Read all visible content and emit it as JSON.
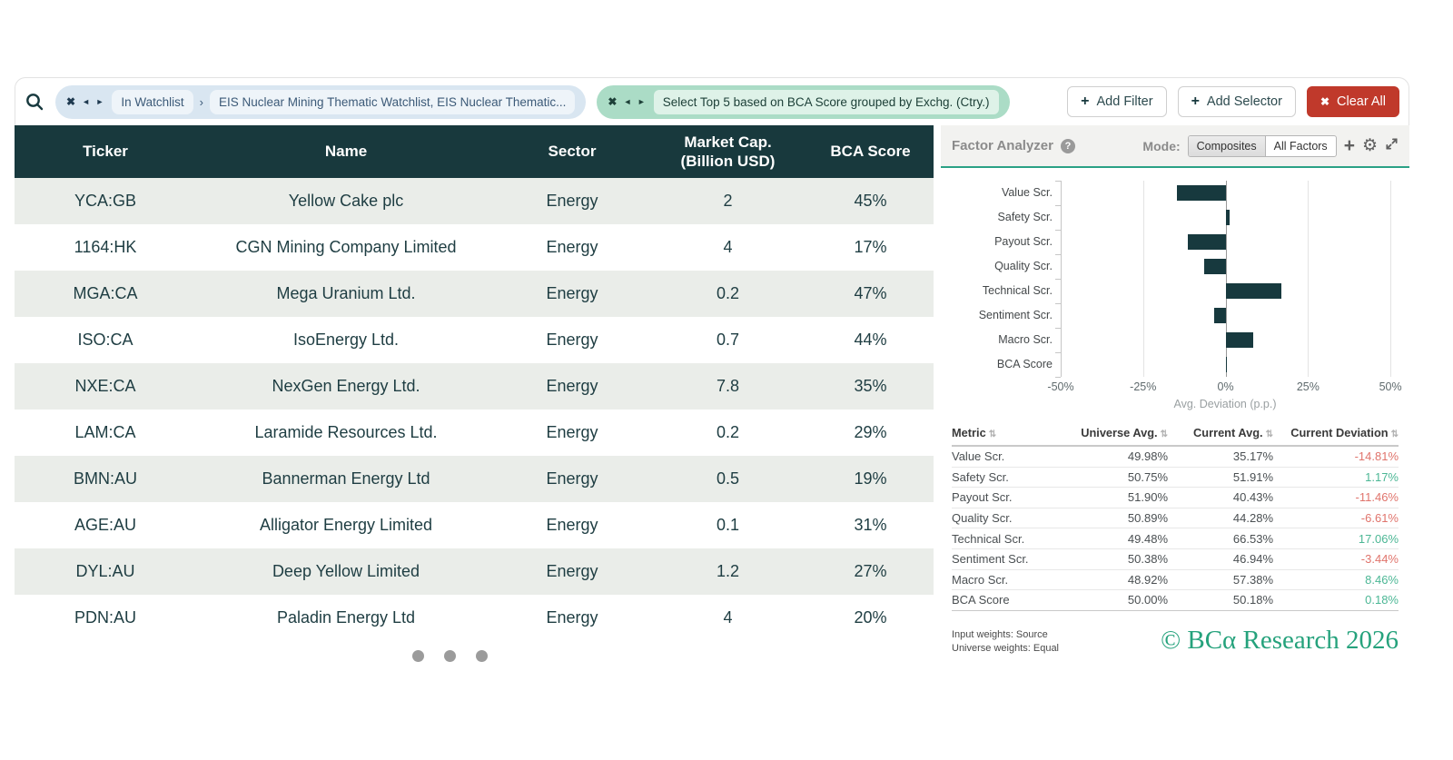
{
  "colors": {
    "header_teal": "#18393d",
    "row_alt_grey": "#eaede9",
    "bar_color": "#17393e",
    "accent_green": "#2aa185",
    "negative_red": "#e0746c",
    "positive_green": "#4cb795",
    "clear_all_red": "#c0392b",
    "brand_green": "#25a27c"
  },
  "filter_bar": {
    "watchlist_chip": {
      "label": "In Watchlist",
      "separator": "›",
      "value": "EIS Nuclear Mining Thematic Watchlist, EIS Nuclear Thematic..."
    },
    "selector_chip": {
      "value": "Select Top 5 based on BCA Score grouped by Exchg. (Ctry.)"
    },
    "add_filter_label": "Add Filter",
    "add_selector_label": "Add Selector",
    "clear_all_label": "Clear All"
  },
  "table": {
    "columns": [
      [
        "Ticker"
      ],
      [
        "Name"
      ],
      [
        "Sector"
      ],
      [
        "Market Cap.",
        "(Billion USD)"
      ],
      [
        "BCA Score"
      ]
    ],
    "rows": [
      [
        "YCA:GB",
        "Yellow Cake plc",
        "Energy",
        "2",
        "45%"
      ],
      [
        "1164:HK",
        "CGN Mining Company Limited",
        "Energy",
        "4",
        "17%"
      ],
      [
        "MGA:CA",
        "Mega Uranium Ltd.",
        "Energy",
        "0.2",
        "47%"
      ],
      [
        "ISO:CA",
        "IsoEnergy Ltd.",
        "Energy",
        "0.7",
        "44%"
      ],
      [
        "NXE:CA",
        "NexGen Energy Ltd.",
        "Energy",
        "7.8",
        "35%"
      ],
      [
        "LAM:CA",
        "Laramide Resources Ltd.",
        "Energy",
        "0.2",
        "29%"
      ],
      [
        "BMN:AU",
        "Bannerman Energy Ltd",
        "Energy",
        "0.5",
        "19%"
      ],
      [
        "AGE:AU",
        "Alligator Energy Limited",
        "Energy",
        "0.1",
        "31%"
      ],
      [
        "DYL:AU",
        "Deep Yellow Limited",
        "Energy",
        "1.2",
        "27%"
      ],
      [
        "PDN:AU",
        "Paladin Energy Ltd",
        "Energy",
        "4",
        "20%"
      ]
    ]
  },
  "pagination": {
    "dot_count": 3
  },
  "factor_analyzer": {
    "title": "Factor Analyzer",
    "mode_label": "Mode:",
    "modes": [
      {
        "label": "Composites",
        "selected": true
      },
      {
        "label": "All Factors",
        "selected": false
      }
    ],
    "chart_data": {
      "type": "bar",
      "orientation": "horizontal",
      "categories": [
        "Value Scr.",
        "Safety Scr.",
        "Payout Scr.",
        "Quality Scr.",
        "Technical Scr.",
        "Sentiment Scr.",
        "Macro Scr.",
        "BCA Score"
      ],
      "values": [
        -14.81,
        1.17,
        -11.46,
        -6.61,
        17.06,
        -3.44,
        8.46,
        0.18
      ],
      "xlabel": "Avg. Deviation (p.p.)",
      "xlim": [
        -50,
        53
      ],
      "xticks": [
        -50,
        -25,
        0,
        25,
        50
      ],
      "xtick_labels": [
        "-50%",
        "-25%",
        "0%",
        "25%",
        "50%"
      ],
      "gridlines": [
        -25,
        25,
        50
      ],
      "bar_color": "#17393e",
      "legend": "none",
      "title": ""
    },
    "metrics_table": {
      "headers": [
        "Metric",
        "Universe Avg.",
        "Current Avg.",
        "Current Deviation"
      ],
      "rows": [
        [
          "Value Scr.",
          "49.98%",
          "35.17%",
          "-14.81%"
        ],
        [
          "Safety Scr.",
          "50.75%",
          "51.91%",
          "1.17%"
        ],
        [
          "Payout Scr.",
          "51.90%",
          "40.43%",
          "-11.46%"
        ],
        [
          "Quality Scr.",
          "50.89%",
          "44.28%",
          "-6.61%"
        ],
        [
          "Technical Scr.",
          "49.48%",
          "66.53%",
          "17.06%"
        ],
        [
          "Sentiment Scr.",
          "50.38%",
          "46.94%",
          "-3.44%"
        ],
        [
          "Macro Scr.",
          "48.92%",
          "57.38%",
          "8.46%"
        ],
        [
          "BCA Score",
          "50.00%",
          "50.18%",
          "0.18%"
        ]
      ]
    },
    "footnotes": [
      "Input weights: Source",
      "Universe weights: Equal"
    ],
    "copyright": "© BCα Research 2026"
  }
}
